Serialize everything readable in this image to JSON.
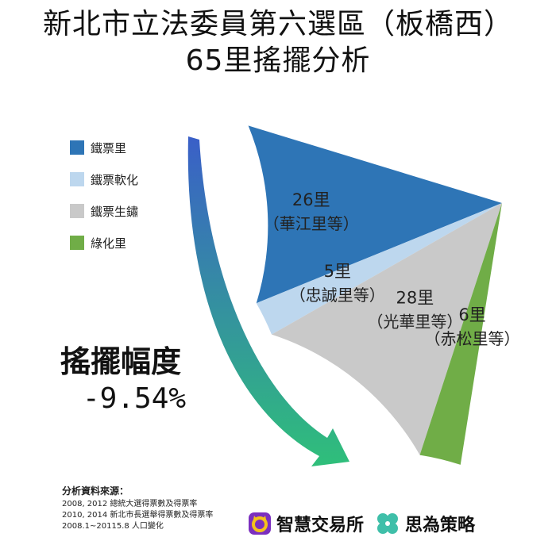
{
  "title": {
    "line1": "新北市立法委員第六選區（板橋西）",
    "line2": "65里搖擺分析"
  },
  "legend": [
    {
      "label": "鐵票里",
      "color": "#2e75b6"
    },
    {
      "label": "鐵票軟化",
      "color": "#bdd7ee"
    },
    {
      "label": "鐵票生鏽",
      "color": "#c9c9c9"
    },
    {
      "label": "綠化里",
      "color": "#70ad47"
    }
  ],
  "swing": {
    "label": "搖擺幅度",
    "value": "-9.54%"
  },
  "chart_data": {
    "type": "pie",
    "slices": [
      {
        "name": "鐵票里",
        "value": 26,
        "label": "26里",
        "sublabel": "（華江里等）",
        "color": "#2e75b6"
      },
      {
        "name": "鐵票軟化",
        "value": 5,
        "label": "5里",
        "sublabel": "（忠誠里等）",
        "color": "#bdd7ee"
      },
      {
        "name": "鐵票生鏽",
        "value": 28,
        "label": "28里",
        "sublabel": "（光華里等）",
        "color": "#c9c9c9"
      },
      {
        "name": "綠化里",
        "value": 6,
        "label": "6里",
        "sublabel": "（赤松里等）",
        "color": "#70ad47"
      }
    ],
    "total": 65,
    "legend_position": "top-left"
  },
  "source": {
    "title": "分析資料來源：",
    "lines": [
      "2008, 2012 總統大選得票數及得票率",
      "2010, 2014 新北市長選舉得票數及得票率",
      "2008.1~20115.8 人口變化"
    ]
  },
  "brands": [
    {
      "name": "智慧交易所",
      "icon": "smart-exchange-logo-icon",
      "color": "#7b2fbf"
    },
    {
      "name": "思為策略",
      "icon": "clover-logo-icon",
      "color": "#3fbfa9"
    }
  ]
}
